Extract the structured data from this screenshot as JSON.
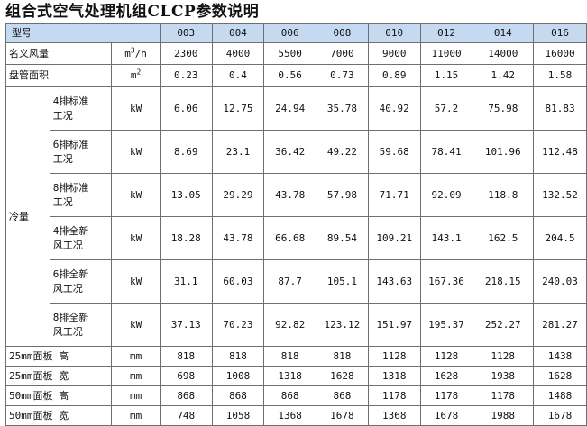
{
  "title": "组合式空气处理机组CLCP参数说明",
  "header": {
    "label": "型号",
    "models": [
      "003",
      "004",
      "006",
      "008",
      "010",
      "012",
      "014",
      "016"
    ]
  },
  "rows_top": [
    {
      "label": "名义风量",
      "unit_base": "m",
      "unit_sup": "3",
      "unit_tail": "/h",
      "values": [
        "2300",
        "4000",
        "5500",
        "7000",
        "9000",
        "11000",
        "14000",
        "16000"
      ]
    },
    {
      "label": "盘管面积",
      "unit_base": "m",
      "unit_sup": "2",
      "unit_tail": "",
      "values": [
        "0.23",
        "0.4",
        "0.56",
        "0.73",
        "0.89",
        "1.15",
        "1.42",
        "1.58"
      ]
    }
  ],
  "cooling": {
    "label": "冷量",
    "rows": [
      {
        "line1": "4排标准",
        "line2": "工况",
        "unit": "kW",
        "values": [
          "6.06",
          "12.75",
          "24.94",
          "35.78",
          "40.92",
          "57.2",
          "75.98",
          "81.83"
        ]
      },
      {
        "line1": "6排标准",
        "line2": "工况",
        "unit": "kW",
        "values": [
          "8.69",
          "23.1",
          "36.42",
          "49.22",
          "59.68",
          "78.41",
          "101.96",
          "112.48"
        ]
      },
      {
        "line1": "8排标准",
        "line2": "工况",
        "unit": "kW",
        "values": [
          "13.05",
          "29.29",
          "43.78",
          "57.98",
          "71.71",
          "92.09",
          "118.8",
          "132.52"
        ]
      },
      {
        "line1": "4排全新",
        "line2": "风工况",
        "unit": "kW",
        "values": [
          "18.28",
          "43.78",
          "66.68",
          "89.54",
          "109.21",
          "143.1",
          "162.5",
          "204.5"
        ]
      },
      {
        "line1": "6排全新",
        "line2": "风工况",
        "unit": "kW",
        "values": [
          "31.1",
          "60.03",
          "87.7",
          "105.1",
          "143.63",
          "167.36",
          "218.15",
          "240.03"
        ]
      },
      {
        "line1": "8排全新",
        "line2": "风工况",
        "unit": "kW",
        "values": [
          "37.13",
          "70.23",
          "92.82",
          "123.12",
          "151.97",
          "195.37",
          "252.27",
          "281.27"
        ]
      }
    ]
  },
  "dimensions": [
    {
      "label": "25mm面板 高",
      "unit": "mm",
      "values": [
        "818",
        "818",
        "818",
        "818",
        "1128",
        "1128",
        "1128",
        "1438"
      ]
    },
    {
      "label": "25mm面板 宽",
      "unit": "mm",
      "values": [
        "698",
        "1008",
        "1318",
        "1628",
        "1318",
        "1628",
        "1938",
        "1628"
      ]
    },
    {
      "label": "50mm面板 高",
      "unit": "mm",
      "values": [
        "868",
        "868",
        "868",
        "868",
        "1178",
        "1178",
        "1178",
        "1488"
      ]
    },
    {
      "label": "50mm面板 宽",
      "unit": "mm",
      "values": [
        "748",
        "1058",
        "1368",
        "1678",
        "1368",
        "1678",
        "1988",
        "1678"
      ]
    }
  ],
  "colors": {
    "header_bg": "#c5d9f1",
    "border": "#6f6f6f"
  }
}
